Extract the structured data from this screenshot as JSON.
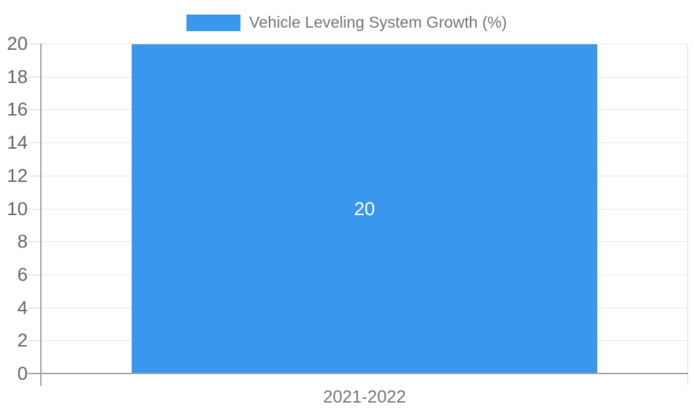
{
  "chart_data": {
    "type": "bar",
    "title": "",
    "legend": {
      "position": "top-center",
      "items": [
        {
          "label": "Vehicle Leveling System Growth (%)",
          "color": "#3998EE"
        }
      ]
    },
    "categories": [
      "2021-2022"
    ],
    "series": [
      {
        "name": "Vehicle Leveling System Growth (%)",
        "values": [
          20
        ],
        "color": "#3998EE"
      }
    ],
    "value_labels": [
      "20"
    ],
    "xlabel": "",
    "ylabel": "",
    "ylim": [
      0,
      20
    ],
    "yticks": [
      0,
      2,
      4,
      6,
      8,
      10,
      12,
      14,
      16,
      18,
      20
    ],
    "ytick_labels": [
      "0",
      "2",
      "4",
      "6",
      "8",
      "10",
      "12",
      "14",
      "16",
      "18",
      "20"
    ],
    "grid": true,
    "bar_width_fraction": 0.72,
    "colors": {
      "bar": "#3998EE",
      "value_label": "#ffffff",
      "axis_tick_label": "#666666",
      "category_label": "#757575",
      "legend_text": "#757575",
      "gridline": "#e7e7e7",
      "tick": "#d6d6d6",
      "axis_line": "#a3a3a3",
      "right_boundary": "#e0e0e0",
      "background": "#ffffff"
    }
  }
}
